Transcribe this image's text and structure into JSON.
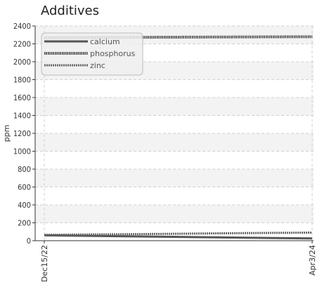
{
  "chart_data": {
    "type": "line",
    "title": "Additives",
    "xlabel": "",
    "ylabel": "ppm",
    "x_ticks": [
      "Dec15/22",
      "Apr3/24"
    ],
    "x_domain": [
      "Dec15/22",
      "Apr3/24"
    ],
    "ylim": [
      0,
      2400
    ],
    "y_ticks": [
      0,
      200,
      400,
      600,
      800,
      1000,
      1200,
      1400,
      1600,
      1800,
      2000,
      2200,
      2400
    ],
    "grid": true,
    "legend_position": "top-left",
    "series": [
      {
        "name": "calcium",
        "style": "solid",
        "color": "#555555",
        "points": [
          {
            "x": "Dec15/22",
            "y": 60
          },
          {
            "x": "Jul1/23",
            "y": 45
          },
          {
            "x": "Apr3/24",
            "y": 25
          }
        ]
      },
      {
        "name": "phosphorus",
        "style": "dotted",
        "color": "#444444",
        "points": [
          {
            "x": "Dec15/22",
            "y": 2270
          },
          {
            "x": "Apr3/24",
            "y": 2280
          }
        ]
      },
      {
        "name": "zinc",
        "style": "dashed",
        "color": "#666666",
        "points": [
          {
            "x": "Dec15/22",
            "y": 65
          },
          {
            "x": "Jul1/23",
            "y": 75
          },
          {
            "x": "Dec1/23",
            "y": 85
          },
          {
            "x": "Apr3/24",
            "y": 90
          }
        ]
      }
    ]
  }
}
